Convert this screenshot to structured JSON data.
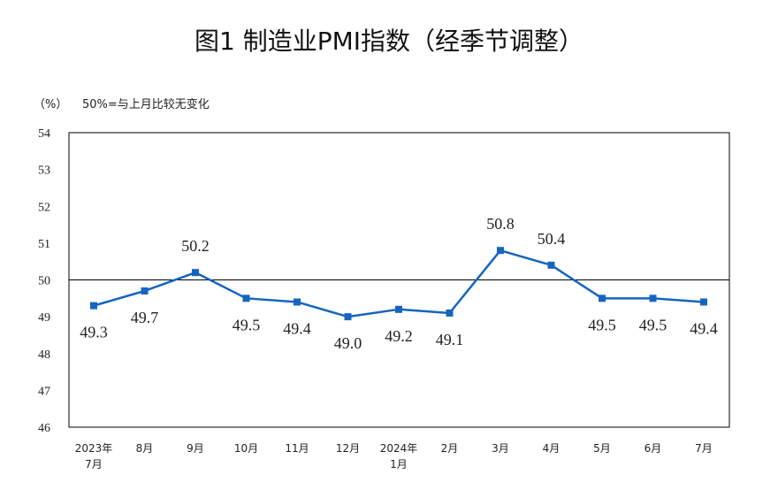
{
  "chart_data": {
    "type": "line",
    "title": "图1  制造业PMI指数（经季节调整）",
    "unit_label": "（%）",
    "reference_note": "50%=与上月比较无变化",
    "ylim": [
      46,
      54
    ],
    "yticks": [
      "46",
      "47",
      "48",
      "49",
      "50",
      "51",
      "52",
      "53",
      "54"
    ],
    "reference_value": 50,
    "categories": [
      [
        "2023年",
        "7月"
      ],
      [
        "8月"
      ],
      [
        "9月"
      ],
      [
        "10月"
      ],
      [
        "11月"
      ],
      [
        "12月"
      ],
      [
        "2024年",
        "1月"
      ],
      [
        "2月"
      ],
      [
        "3月"
      ],
      [
        "4月"
      ],
      [
        "5月"
      ],
      [
        "6月"
      ],
      [
        "7月"
      ]
    ],
    "series": [
      {
        "name": "制造业PMI",
        "color": "#1565C0",
        "values": [
          49.3,
          49.7,
          50.2,
          49.5,
          49.4,
          49.0,
          49.2,
          49.1,
          50.8,
          50.4,
          49.5,
          49.5,
          49.4
        ],
        "labels": [
          "49.3",
          "49.7",
          "50.2",
          "49.5",
          "49.4",
          "49.0",
          "49.2",
          "49.1",
          "50.8",
          "50.4",
          "49.5",
          "49.5",
          "49.4"
        ],
        "label_positions": [
          "below",
          "below",
          "above",
          "below",
          "below",
          "below",
          "below",
          "below",
          "above",
          "above",
          "below",
          "below",
          "below"
        ]
      }
    ]
  }
}
